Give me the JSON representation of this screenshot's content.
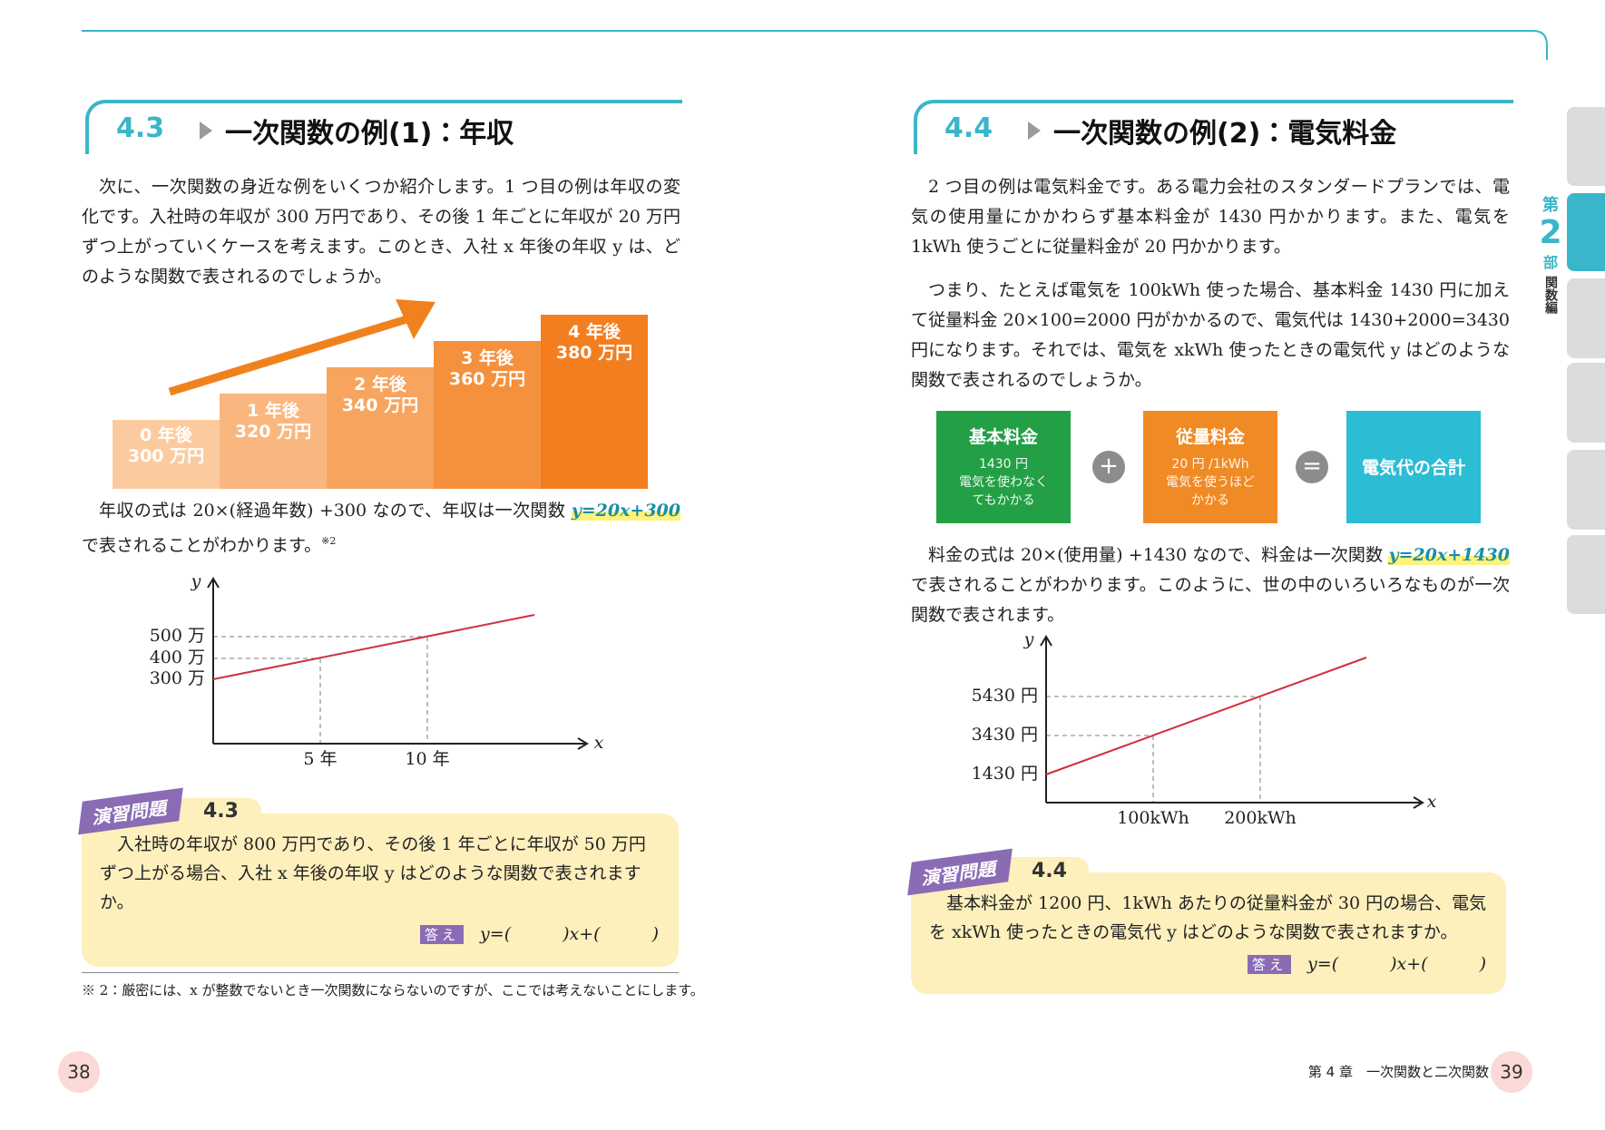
{
  "left": {
    "section": {
      "number": "4.3",
      "title": "一次関数の例(1)：年収"
    },
    "paragraph1": "次に、一次関数の身近な例をいくつか紹介します。1 つ目の例は年収の変化です。入社時の年収が 300 万円であり、その後 1 年ごとに年収が 20 万円ずつ上がっていくケースを考えます。このとき、入社 x 年後の年収 y は、どのような関数で表されるのでしょうか。",
    "steps": [
      {
        "year": "0 年後",
        "amount": "300 万円"
      },
      {
        "year": "1 年後",
        "amount": "320 万円"
      },
      {
        "year": "2 年後",
        "amount": "340 万円"
      },
      {
        "year": "3 年後",
        "amount": "360 万円"
      },
      {
        "year": "4 年後",
        "amount": "380 万円"
      }
    ],
    "paragraph2": {
      "text": "年収の式は 20×(経過年数) +300 なので、年収は一次関数 ",
      "formula": "y=20x+300",
      "rest": "で表されることがわかります。",
      "note": "※2"
    },
    "graph": {
      "y_label": "y",
      "x_label": "x",
      "y_ticks": [
        "500 万",
        "400 万",
        "300 万"
      ],
      "x_ticks": [
        "5 年",
        "10 年"
      ]
    },
    "exercise": {
      "badge": "演習問題",
      "number": "4.3",
      "text": "入社時の年収が 800 万円であり、その後 1 年ごとに年収が 50 万円ずつ上がる場合、入社 x 年後の年収 y はどのような関数で表されますか。",
      "answer_tag": "答え",
      "answer": "y=(　　　)x+(　　　)"
    },
    "footnote": "※ 2：厳密には、x が整数でないとき一次関数にならないのですが、ここでは考えないことにします。",
    "page_number": "38"
  },
  "right": {
    "section": {
      "number": "4.4",
      "title": "一次関数の例(2)：電気料金"
    },
    "paragraph1": "2 つ目の例は電気料金です。ある電力会社のスタンダードプランでは、電気の使用量にかかわらず基本料金が 1430 円かかります。また、電気を 1kWh 使うごとに従量料金が 20 円かかります。",
    "paragraph2": "つまり、たとえば電気を 100kWh 使った場合、基本料金 1430 円に加えて従量料金 20×100=2000 円がかかるので、電気代は 1430+2000=3430 円になります。それでは、電気を xkWh 使ったときの電気代 y はどのような関数で表されるのでしょうか。",
    "boxes": [
      {
        "title": "基本料金",
        "lines": [
          "1430 円",
          "電気を使わなく",
          "てもかかる"
        ]
      },
      {
        "title": "従量料金",
        "lines": [
          "20 円 /1kWh",
          "電気を使うほど",
          "かかる"
        ]
      },
      {
        "title": "電気代の合計",
        "lines": []
      }
    ],
    "operators": [
      "+",
      "="
    ],
    "paragraph3": {
      "text": "料金の式は 20×(使用量) +1430 なので、料金は一次関数 ",
      "formula": "y=20x+1430",
      "rest": "で表されることがわかります。このように、世の中のいろいろなものが一次関数で表されます。"
    },
    "graph": {
      "y_label": "y",
      "x_label": "x",
      "y_ticks": [
        "5430 円",
        "3430 円",
        "1430 円"
      ],
      "x_ticks": [
        "100kWh",
        "200kWh"
      ]
    },
    "exercise": {
      "badge": "演習問題",
      "number": "4.4",
      "text": "基本料金が 1200 円、1kWh あたりの従量料金が 30 円の場合、電気を xkWh 使ったときの電気代 y はどのような関数で表されますか。",
      "answer_tag": "答え",
      "answer": "y=(　　　)x+(　　　)"
    },
    "chapter": "第 4 章　一次関数と二次関数",
    "page_number": "39",
    "side": {
      "part_prefix": "第",
      "part_number": "2",
      "part_suffix": "部",
      "part_name": "関数編"
    }
  }
}
